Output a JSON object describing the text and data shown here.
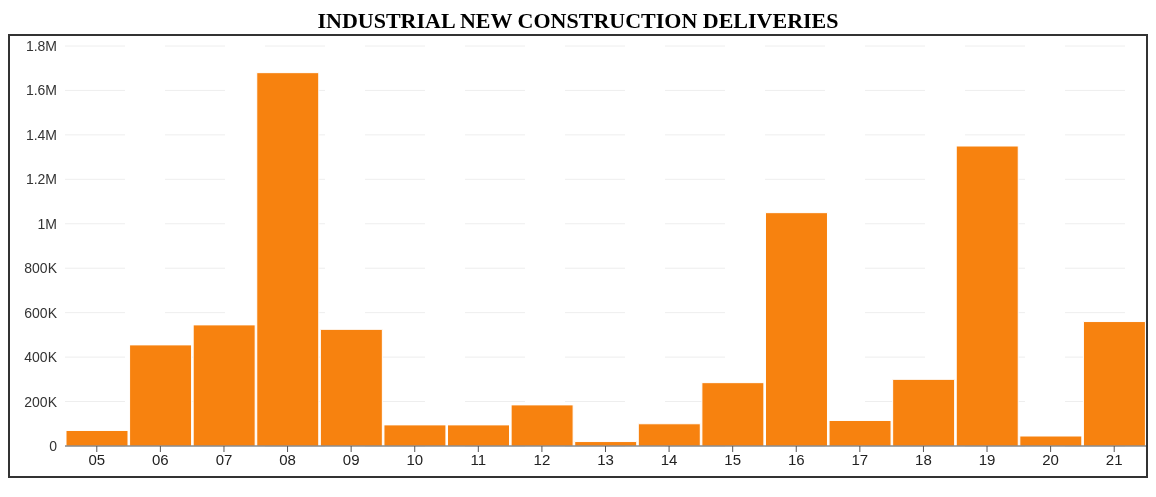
{
  "chart_data": {
    "type": "bar",
    "title": "INDUSTRIAL NEW CONSTRUCTION DELIVERIES",
    "categories": [
      "05",
      "06",
      "07",
      "08",
      "09",
      "10",
      "11",
      "12",
      "13",
      "14",
      "15",
      "16",
      "17",
      "18",
      "19",
      "20",
      "21"
    ],
    "values": [
      70000,
      455000,
      545000,
      1680000,
      525000,
      95000,
      95000,
      185000,
      20000,
      100000,
      285000,
      1050000,
      115000,
      300000,
      1350000,
      45000,
      560000
    ],
    "color": "#f7820f",
    "ylim": [
      0,
      1800000
    ],
    "yticks": [
      0,
      {
        "value": 200000,
        "label": "200K"
      },
      {
        "value": 400000,
        "label": "400K"
      },
      {
        "value": 600000,
        "label": "600K"
      },
      {
        "value": 800000,
        "label": "800K"
      },
      {
        "value": 1000000,
        "label": "1M"
      },
      {
        "value": 1200000,
        "label": "1.2M"
      },
      {
        "value": 1400000,
        "label": "1.4M"
      },
      {
        "value": 1600000,
        "label": "1.6M"
      },
      {
        "value": 1800000,
        "label": "1.8M"
      }
    ],
    "grid": "y"
  }
}
